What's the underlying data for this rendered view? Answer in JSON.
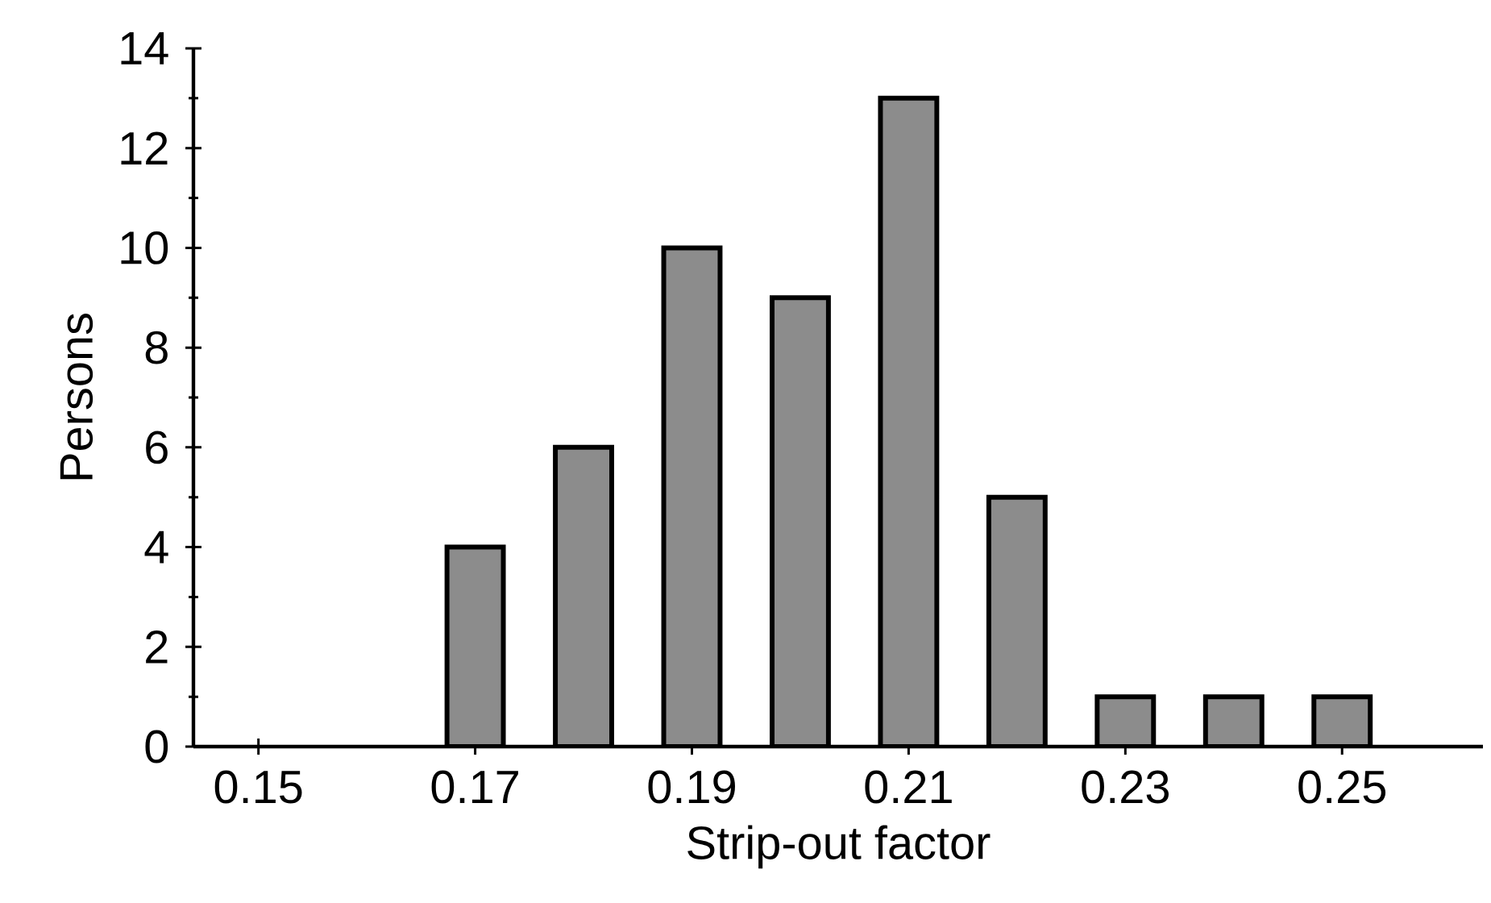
{
  "chart_data": {
    "type": "bar",
    "xlabel": "Strip-out factor",
    "ylabel": "Persons",
    "x": [
      0.17,
      0.18,
      0.19,
      0.2,
      0.21,
      0.22,
      0.23,
      0.24,
      0.25
    ],
    "values": [
      4,
      6,
      10,
      9,
      13,
      5,
      1,
      1,
      1
    ],
    "color": "#8c8c8c",
    "xlim": [
      0.144,
      0.263
    ],
    "xticks": [
      0.15,
      0.17,
      0.19,
      0.21,
      0.23,
      0.25
    ],
    "ylim": [
      0,
      14
    ],
    "yticks": [
      0,
      2,
      4,
      6,
      8,
      10,
      12,
      14
    ],
    "grid": false
  }
}
